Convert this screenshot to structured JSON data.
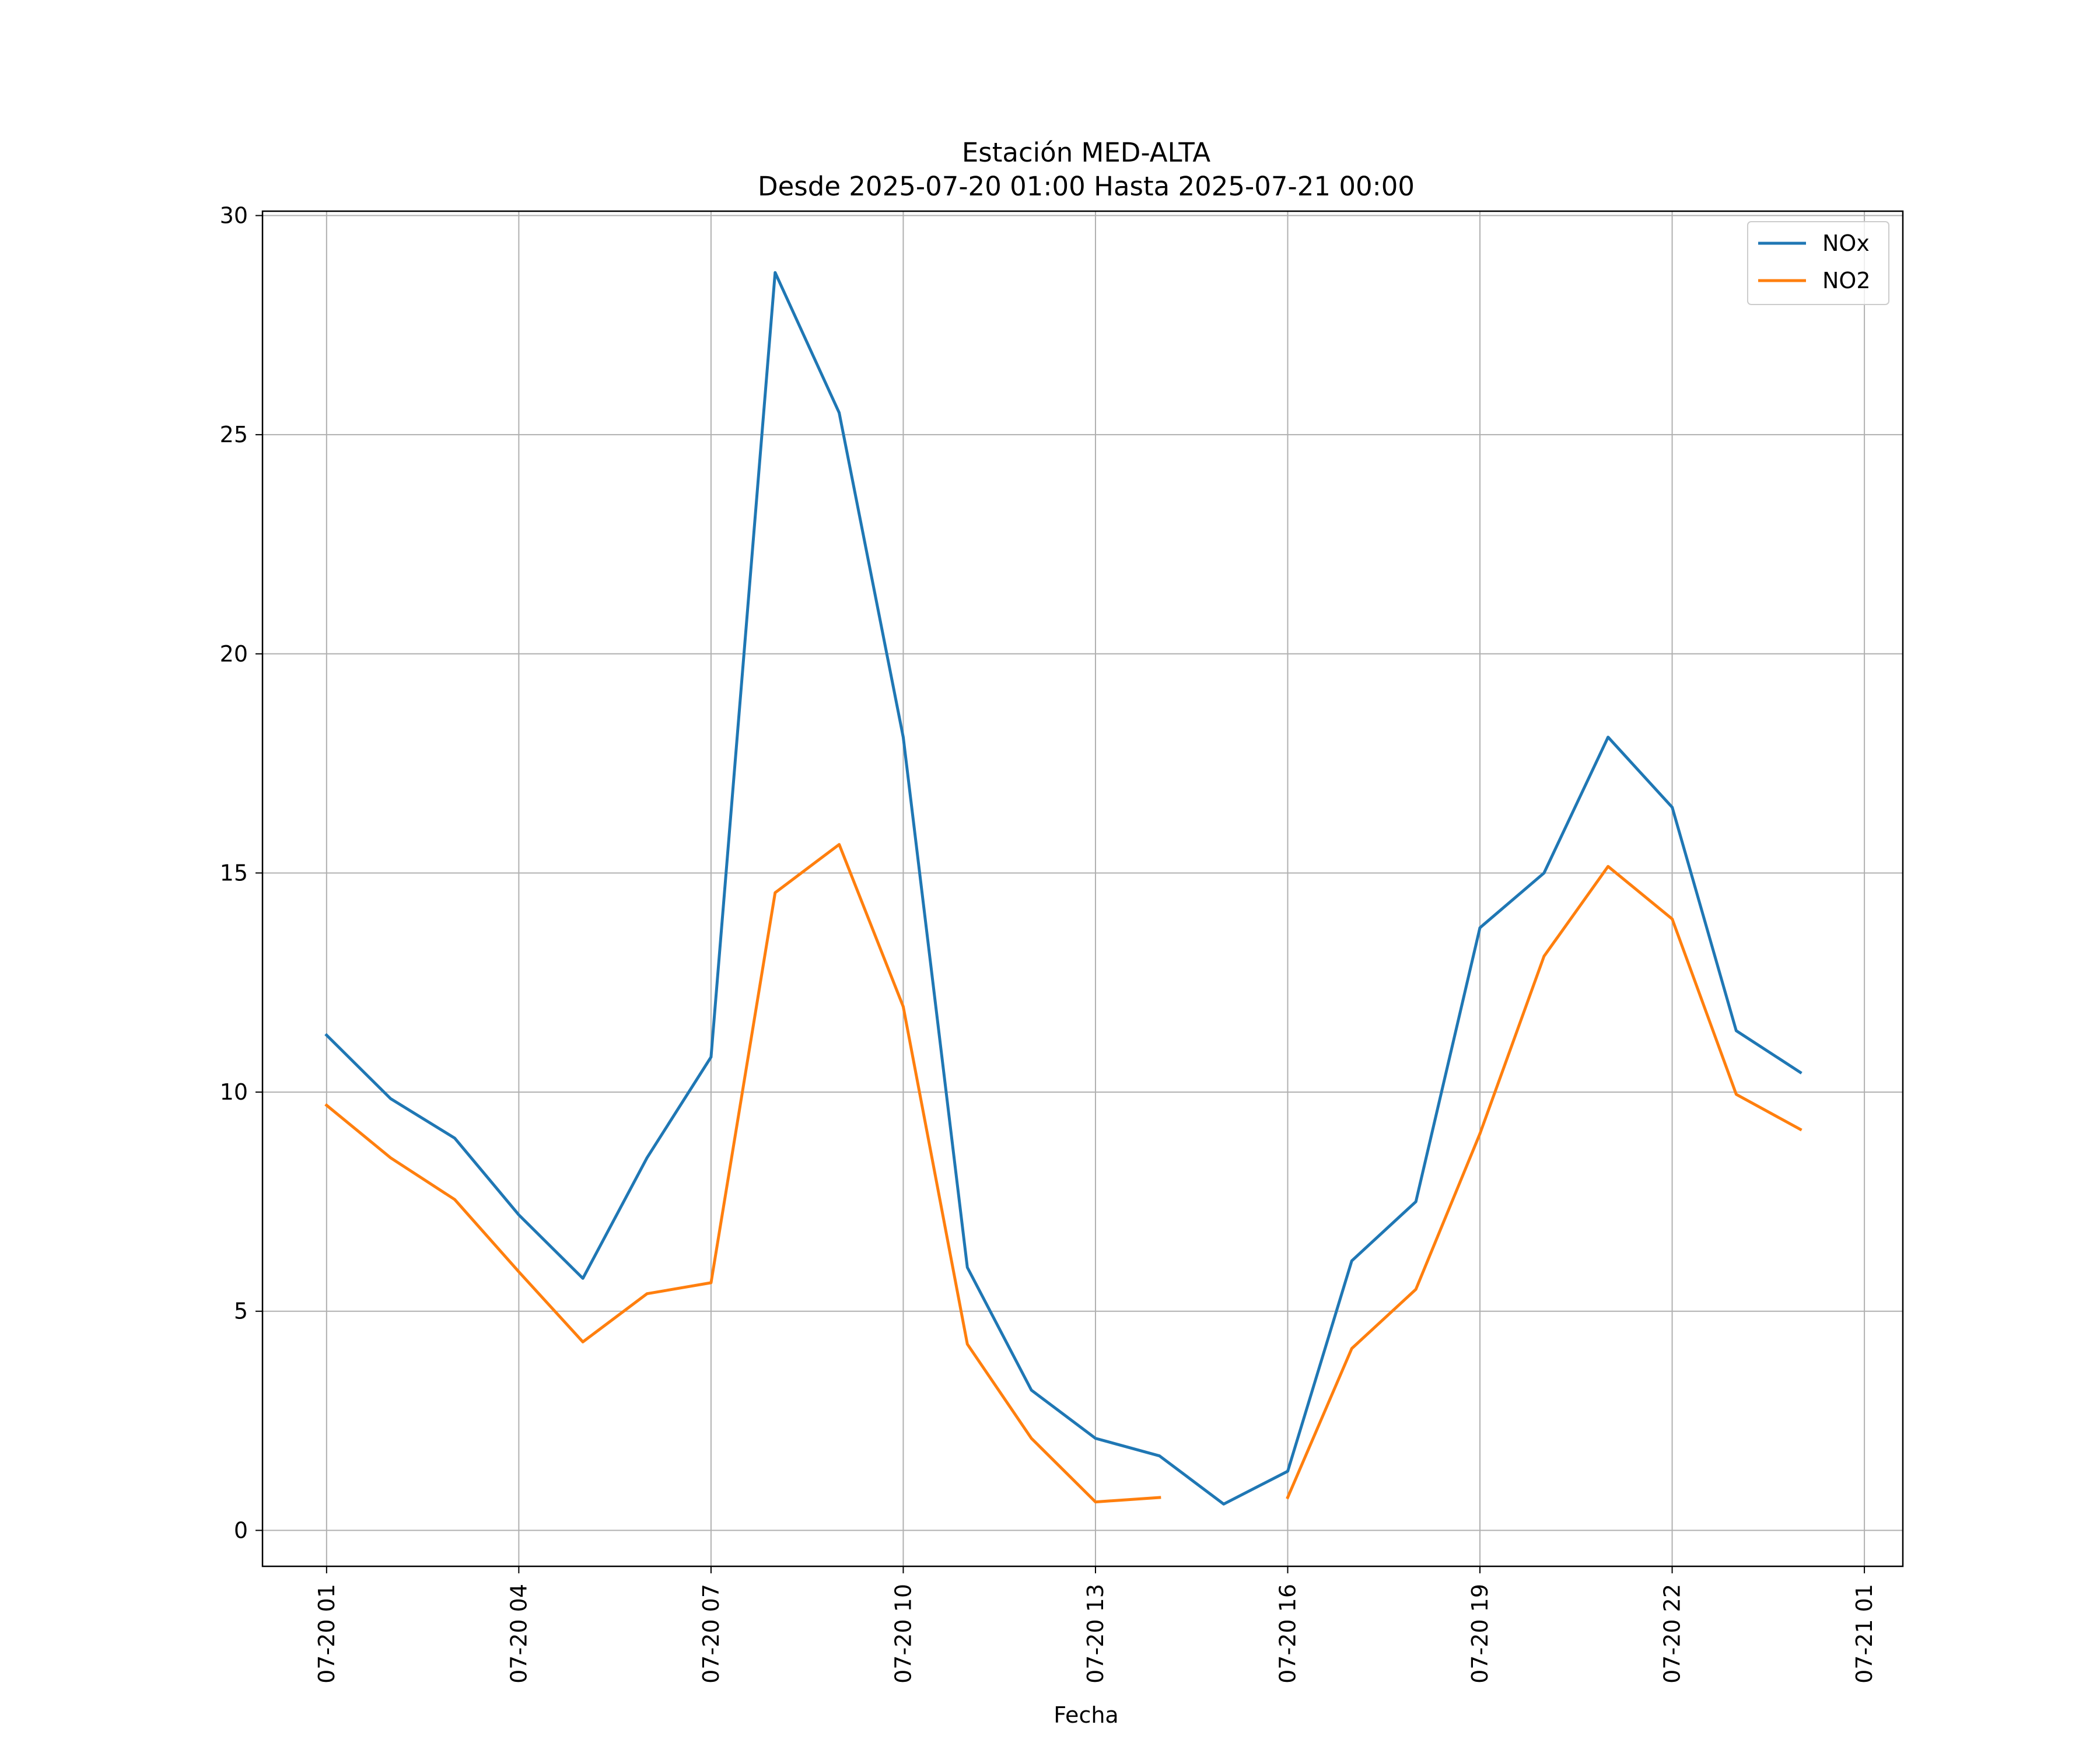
{
  "chart_data": {
    "type": "line",
    "title": "Estación MED-ALTA",
    "subtitle": "Desde 2025-07-20 01:00 Hasta 2025-07-21 00:00",
    "xlabel": "Fecha",
    "ylabel": "",
    "x": [
      "2025-07-20 01:00",
      "2025-07-20 02:00",
      "2025-07-20 03:00",
      "2025-07-20 04:00",
      "2025-07-20 05:00",
      "2025-07-20 06:00",
      "2025-07-20 07:00",
      "2025-07-20 08:00",
      "2025-07-20 09:00",
      "2025-07-20 10:00",
      "2025-07-20 11:00",
      "2025-07-20 12:00",
      "2025-07-20 13:00",
      "2025-07-20 14:00",
      "2025-07-20 15:00",
      "2025-07-20 16:00",
      "2025-07-20 17:00",
      "2025-07-20 18:00",
      "2025-07-20 19:00",
      "2025-07-20 20:00",
      "2025-07-20 21:00",
      "2025-07-20 22:00",
      "2025-07-20 23:00",
      "2025-07-21 00:00"
    ],
    "series": [
      {
        "name": "NOx",
        "color": "#1f77b4",
        "values": [
          11.3,
          9.85,
          8.95,
          7.2,
          5.75,
          8.5,
          10.8,
          28.7,
          25.5,
          18.1,
          6.0,
          3.2,
          2.1,
          1.7,
          0.6,
          1.35,
          6.15,
          7.5,
          13.75,
          15.0,
          18.1,
          16.5,
          11.4,
          10.45
        ]
      },
      {
        "name": "NO2",
        "color": "#ff7f0e",
        "values": [
          9.7,
          8.5,
          7.55,
          5.9,
          4.3,
          5.4,
          5.65,
          14.55,
          15.65,
          11.95,
          4.25,
          2.1,
          0.65,
          0.75,
          null,
          0.75,
          4.15,
          5.5,
          9.05,
          13.1,
          15.15,
          13.95,
          9.95,
          9.15
        ]
      }
    ],
    "xlim": [
      "2025-07-20 00:00",
      "2025-07-21 01:36"
    ],
    "ylim": [
      -0.82,
      30.1
    ],
    "yticks": [
      0,
      5,
      10,
      15,
      20,
      25,
      30
    ],
    "xticks": [
      "2025-07-20 01:00",
      "2025-07-20 04:00",
      "2025-07-20 07:00",
      "2025-07-20 10:00",
      "2025-07-20 13:00",
      "2025-07-20 16:00",
      "2025-07-20 19:00",
      "2025-07-20 22:00",
      "2025-07-21 01:00"
    ],
    "xtick_labels": [
      "07-20 01",
      "07-20 04",
      "07-20 07",
      "07-20 10",
      "07-20 13",
      "07-20 16",
      "07-20 19",
      "07-20 22",
      "07-21 01"
    ],
    "grid": true,
    "legend_position": "top-right"
  }
}
